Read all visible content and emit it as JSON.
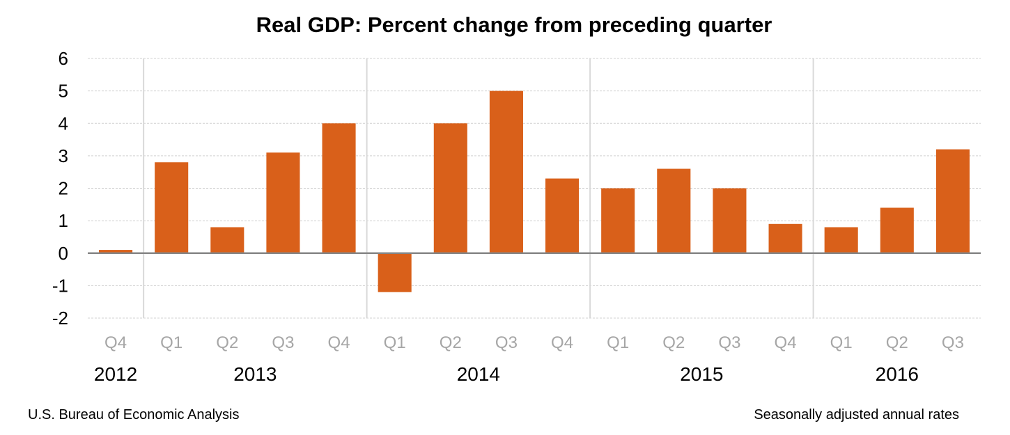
{
  "chart_data": {
    "type": "bar",
    "title": "Real GDP:  Percent change from preceding quarter",
    "xlabel": "",
    "ylabel": "",
    "ylim": [
      -2,
      6
    ],
    "yticks": [
      6,
      5,
      4,
      3,
      2,
      1,
      0,
      -1,
      -2
    ],
    "grid": true,
    "legend": "none",
    "bar_color": "#d9601a",
    "categories": [
      "Q4",
      "Q1",
      "Q2",
      "Q3",
      "Q4",
      "Q1",
      "Q2",
      "Q3",
      "Q4",
      "Q1",
      "Q2",
      "Q3",
      "Q4",
      "Q1",
      "Q2",
      "Q3"
    ],
    "years": [
      {
        "label": "2012",
        "start": 0,
        "end": 0
      },
      {
        "label": "2013",
        "start": 1,
        "end": 4
      },
      {
        "label": "2014",
        "start": 5,
        "end": 8
      },
      {
        "label": "2015",
        "start": 9,
        "end": 12
      },
      {
        "label": "2016",
        "start": 13,
        "end": 15
      }
    ],
    "series": [
      {
        "name": "Real GDP percent change",
        "values": [
          0.1,
          2.8,
          0.8,
          3.1,
          4.0,
          -1.2,
          4.0,
          5.0,
          2.3,
          2.0,
          2.6,
          2.0,
          0.9,
          0.8,
          1.4,
          3.2
        ]
      }
    ],
    "source_note": "U.S. Bureau of Economic Analysis",
    "rate_note": "Seasonally adjusted annual rates"
  }
}
